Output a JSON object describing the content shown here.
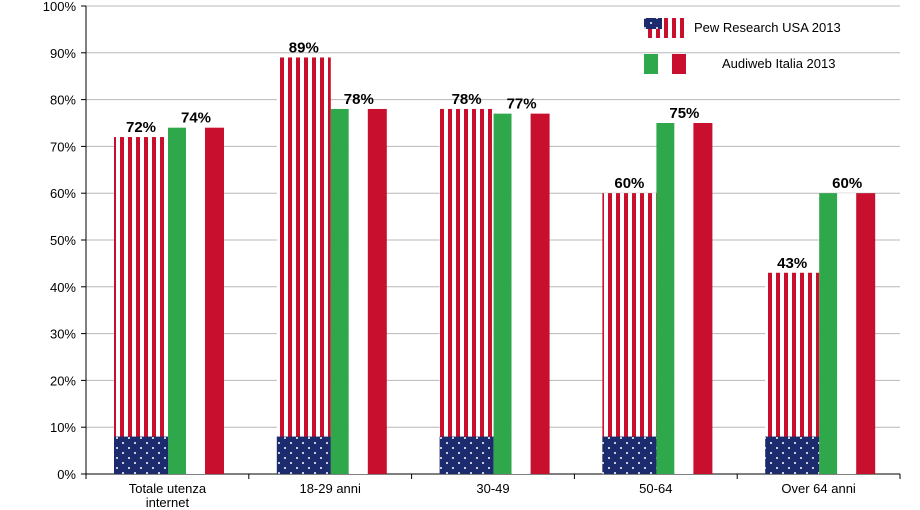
{
  "chart_data": {
    "type": "bar",
    "categories": [
      "Totale utenza internet",
      "18-29 anni",
      "30-49",
      "50-64",
      "Over 64 anni"
    ],
    "series": [
      {
        "name": "Pew Research USA 2013",
        "values": [
          72,
          89,
          78,
          60,
          43
        ],
        "style": "us-flag"
      },
      {
        "name": "Audiweb Italia 2013",
        "values": [
          74,
          78,
          77,
          75,
          60
        ],
        "style": "italy-flag"
      }
    ],
    "data_labels": {
      "series0": [
        "72%",
        "89%",
        "78%",
        "60%",
        "43%"
      ],
      "series1": [
        "74%",
        "78%",
        "77%",
        "75%",
        "60%"
      ]
    },
    "yticks": [
      "0%",
      "10%",
      "20%",
      "30%",
      "40%",
      "50%",
      "60%",
      "70%",
      "80%",
      "90%",
      "100%"
    ],
    "ylim": [
      0,
      100
    ],
    "grid": true,
    "legend_position": "top-right",
    "colors": {
      "us_red": "#c8102e",
      "us_white": "#ffffff",
      "us_blue": "#1c2a6e",
      "it_green": "#2ea84a",
      "it_white": "#ffffff",
      "it_red": "#c8102e",
      "grid": "#b8b8b8",
      "axis": "#000000"
    }
  }
}
